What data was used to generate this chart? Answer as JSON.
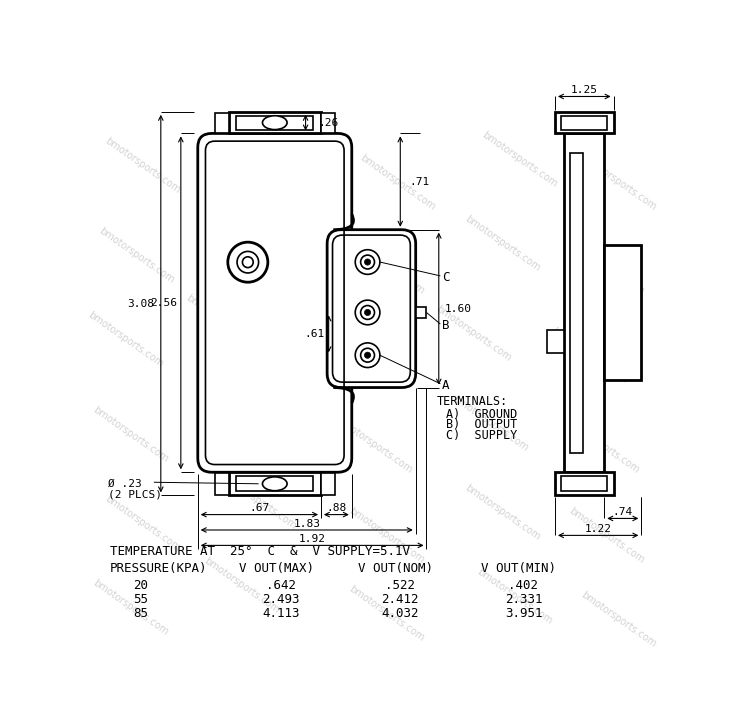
{
  "bg_color": "#ffffff",
  "watermark_text": "bmotorsports.com",
  "temp_label": "TEMPERATURE AT  25°  C  &  V SUPPLY=5.1V",
  "table_headers": [
    "PRESSURE(KPA)",
    "V OUT(MAX)",
    "V OUT(NOM)",
    "V OUT(MIN)"
  ],
  "table_data": [
    [
      "20",
      ".642",
      ".522",
      ".402"
    ],
    [
      "55",
      "2.493",
      "2.412",
      "2.331"
    ],
    [
      "85",
      "4.113",
      "4.032",
      "3.951"
    ]
  ],
  "dim_026": ".26",
  "dim_308": "3.08",
  "dim_256": "2.56",
  "dim_071": ".71",
  "dim_160": "1.60",
  "dim_061": ".61",
  "dim_067": ".67",
  "dim_088": ".88",
  "dim_183": "1.83",
  "dim_192": "1.92",
  "dim_023": ".23",
  "dim_2plcs": "(2 PLCS)",
  "dim_phi": "Ø",
  "dim_125": "1.25",
  "dim_074": ".74",
  "dim_122": "1.22",
  "terminals_header": "TERMINALS:",
  "terminal_a": "A)  GROUND",
  "terminal_b": "B)  OUTPUT",
  "terminal_c": "C)  SUPPLY",
  "label_a": "A",
  "label_b": "B",
  "label_c": "C",
  "line_color": "#000000",
  "lw_thick": 2.0,
  "lw_med": 1.2,
  "lw_thin": 0.7,
  "text_color": "#000000"
}
